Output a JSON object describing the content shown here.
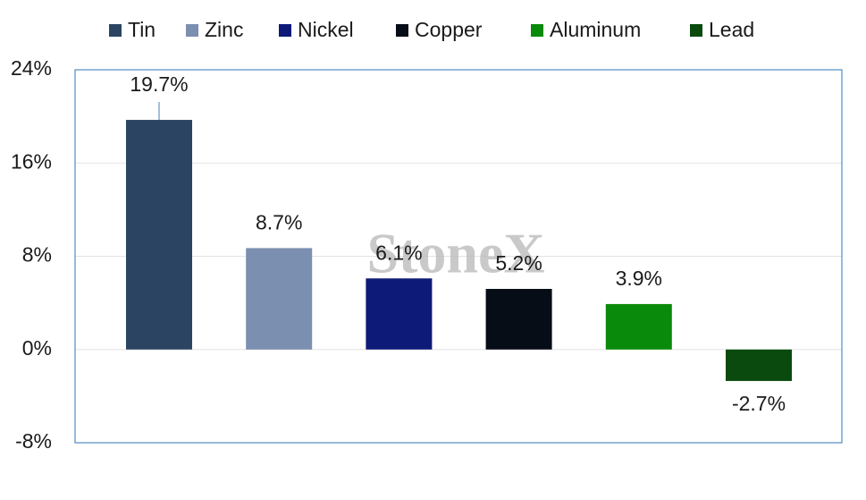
{
  "chart_data": {
    "type": "bar",
    "watermark": "StoneX",
    "series": [
      {
        "name": "Tin",
        "color": "#2b4462",
        "values": [
          19.7
        ],
        "value_labels": [
          "19.7%"
        ]
      },
      {
        "name": "Zinc",
        "color": "#7b8fb0",
        "values": [
          8.7
        ],
        "value_labels": [
          "8.7%"
        ]
      },
      {
        "name": "Nickel",
        "color": "#0e1a78",
        "values": [
          6.1
        ],
        "value_labels": [
          "6.1%"
        ]
      },
      {
        "name": "Copper",
        "color": "#070d17",
        "values": [
          5.2
        ],
        "value_labels": [
          "5.2%"
        ]
      },
      {
        "name": "Aluminum",
        "color": "#0a8a0a",
        "values": [
          3.9
        ],
        "value_labels": [
          "3.9%"
        ]
      },
      {
        "name": "Lead",
        "color": "#0a4a0f",
        "values": [
          -2.7
        ],
        "value_labels": [
          "-2.7%"
        ]
      }
    ],
    "ylim": [
      -8,
      24
    ],
    "yticks": [
      {
        "value": -8,
        "label": "-8%"
      },
      {
        "value": 0,
        "label": "0%"
      },
      {
        "value": 8,
        "label": "8%"
      },
      {
        "value": 16,
        "label": "16%"
      },
      {
        "value": 24,
        "label": "24%"
      }
    ],
    "grid": true,
    "legend": "top"
  }
}
